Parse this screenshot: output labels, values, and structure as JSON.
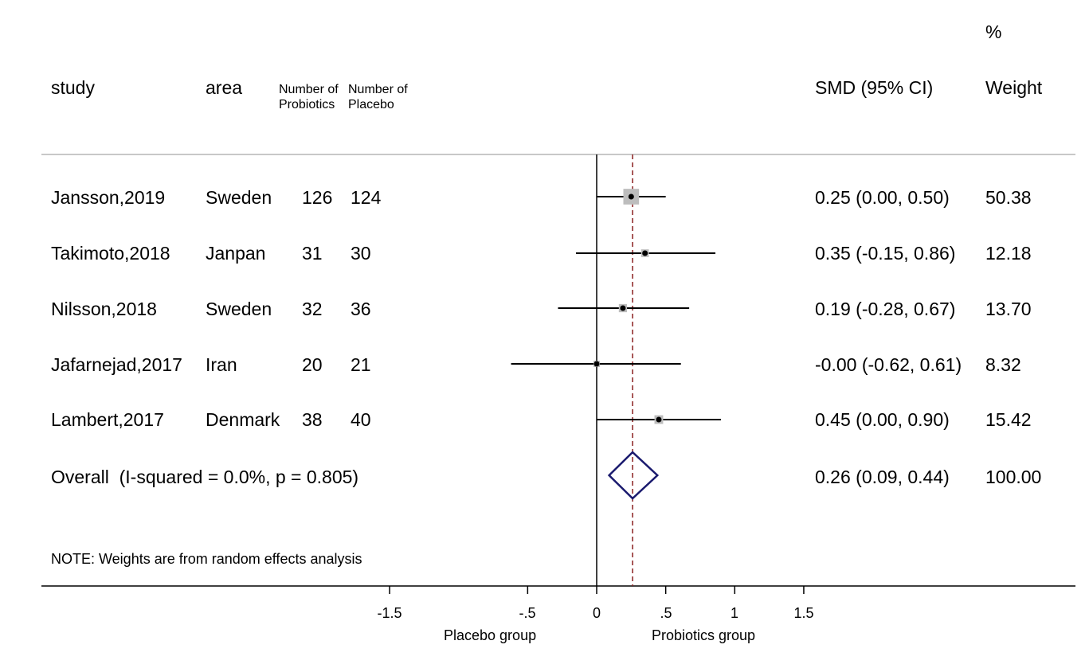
{
  "headers": {
    "study": "study",
    "area": "area",
    "n_probiotics": "Number of\nProbiotics",
    "n_placebo": "Number of\nPlacebo",
    "smd": "SMD (95% CI)",
    "weight_pct": "%",
    "weight": "Weight"
  },
  "rows": [
    {
      "study": "Jansson,2019",
      "area": "Sweden",
      "n_probiotics": "126",
      "n_placebo": "124",
      "smd_ci": "0.25 (0.00, 0.50)",
      "weight": "50.38"
    },
    {
      "study": "Takimoto,2018",
      "area": "Janpan",
      "n_probiotics": "31",
      "n_placebo": "30",
      "smd_ci": "0.35 (-0.15, 0.86)",
      "weight": "12.18"
    },
    {
      "study": "Nilsson,2018",
      "area": "Sweden",
      "n_probiotics": "32",
      "n_placebo": "36",
      "smd_ci": "0.19 (-0.28, 0.67)",
      "weight": "13.70"
    },
    {
      "study": "Jafarnejad,2017",
      "area": "Iran",
      "n_probiotics": "20",
      "n_placebo": "21",
      "smd_ci": "-0.00 (-0.62, 0.61)",
      "weight": "8.32"
    },
    {
      "study": "Lambert,2017",
      "area": "Denmark",
      "n_probiotics": "38",
      "n_placebo": "40",
      "smd_ci": "0.45 (0.00, 0.90)",
      "weight": "15.42"
    }
  ],
  "overall": {
    "label": "Overall  (I-squared = 0.0%, p = 0.805)",
    "smd_ci": "0.26 (0.09, 0.44)",
    "weight": "100.00"
  },
  "note": "NOTE: Weights are from random effects analysis",
  "axis": {
    "ticks": [
      "-1.5",
      "-.5",
      "0",
      ".5",
      "1",
      "1.5"
    ],
    "left_label": "Placebo group",
    "right_label": "Probiotics group"
  },
  "chart_data": {
    "type": "forest",
    "xlim": [
      -1.5,
      1.5
    ],
    "tick_values": [
      -1.5,
      -0.5,
      0,
      0.5,
      1,
      1.5
    ],
    "studies": [
      {
        "name": "Jansson,2019",
        "est": 0.25,
        "lo": 0.0,
        "hi": 0.5,
        "weight": 50.38
      },
      {
        "name": "Takimoto,2018",
        "est": 0.35,
        "lo": -0.15,
        "hi": 0.86,
        "weight": 12.18
      },
      {
        "name": "Nilsson,2018",
        "est": 0.19,
        "lo": -0.28,
        "hi": 0.67,
        "weight": 13.7
      },
      {
        "name": "Jafarnejad,2017",
        "est": -0.0,
        "lo": -0.62,
        "hi": 0.61,
        "weight": 8.32
      },
      {
        "name": "Lambert,2017",
        "est": 0.45,
        "lo": 0.0,
        "hi": 0.9,
        "weight": 15.42
      }
    ],
    "overall": {
      "est": 0.26,
      "lo": 0.09,
      "hi": 0.44
    },
    "colors": {
      "box": "#bdbdbd",
      "diamond": "#1a1a6e",
      "ref_line": "#8b2020",
      "lines": "#000000",
      "header_rule": "#c8c8c8"
    }
  }
}
